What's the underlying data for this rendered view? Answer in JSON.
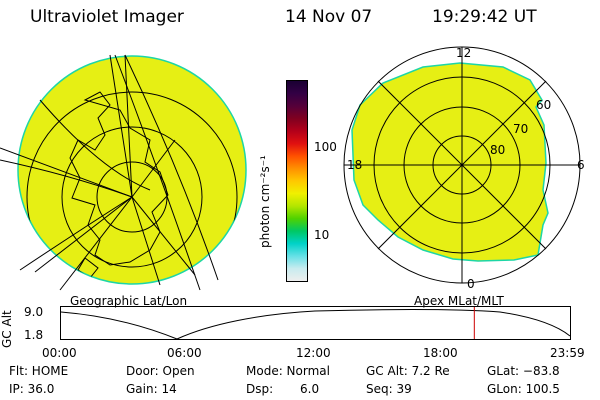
{
  "header": {
    "instrument": "Ultraviolet Imager",
    "date": "14 Nov 07",
    "time": "19:29:42 UT"
  },
  "colors": {
    "image_fill": "#e6ef14",
    "image_edge": "#1dd6a6",
    "grid_line": "#000000",
    "orbit_marker": "#cc0000"
  },
  "left_panel": {
    "caption": "Geographic Lat/Lon"
  },
  "right_panel": {
    "caption": "Apex MLat/MLT",
    "mlt_labels": {
      "top": "12",
      "left": "18",
      "right": "6",
      "bottom": "0"
    },
    "lat_labels": [
      "60",
      "70",
      "80"
    ]
  },
  "colorbar": {
    "label": "photon cm⁻²s⁻¹",
    "ticks": [
      "100",
      "10"
    ],
    "colors": [
      "#1a0033",
      "#330044",
      "#55003a",
      "#800020",
      "#b3001a",
      "#e01010",
      "#ff5000",
      "#ff9000",
      "#ffc800",
      "#f0f000",
      "#b4e600",
      "#50d200",
      "#00c864",
      "#00d2c8",
      "#64e0e6",
      "#c8ecef",
      "#eeeeee"
    ]
  },
  "altitude_strip": {
    "ylabel": "GC Alt",
    "y_ticks": [
      "9.0",
      "1.8"
    ],
    "x_ticks": [
      "00:00",
      "06:00",
      "12:00",
      "18:00",
      "23:59"
    ],
    "marker_fraction": 0.812
  },
  "status": {
    "flt": "Flt: HOME",
    "ip": "IP: 36.0",
    "door": "Door: Open",
    "gain": "Gain: 14",
    "mode": "Mode: Normal",
    "dsp_label": "Dsp:",
    "dsp_value": "6.0",
    "gcalt": "GC Alt: 7.2 Re",
    "seq": "Seq: 39",
    "glat": "GLat: −83.8",
    "glon": "GLon: 100.5"
  }
}
